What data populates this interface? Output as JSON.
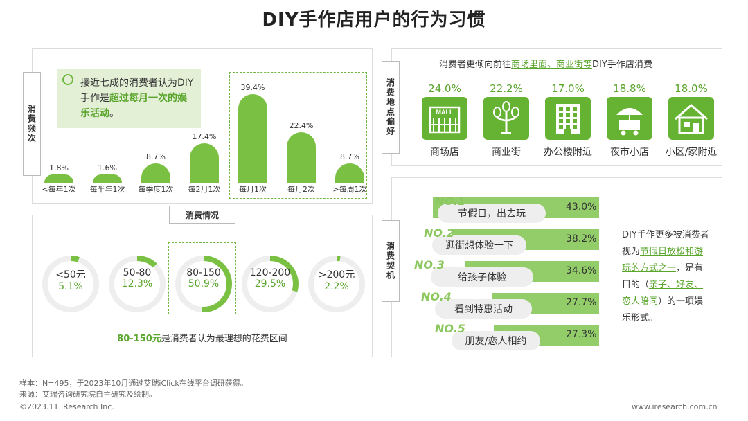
{
  "title": "DIY手作店用户的行为习惯",
  "freq": {
    "label": "消费频次",
    "callout": {
      "a": "接近七成",
      "b": "的消费者认为DIY手作是",
      "c": "超过每月一次的娱乐活动",
      "d": "。"
    }
  },
  "spending": {
    "label": "消费情况",
    "note_bold": "80-150元",
    "note_rest": "是消费者认为最理想的花费区间"
  },
  "location": {
    "label": "消费地点偏好",
    "head_pre": "消费者更倾向前往",
    "head_link": "商场里面、商业街等",
    "head_post": "DIY手作店消费"
  },
  "motive": {
    "label": "消费契机",
    "side_1": "DIY手作更多被消费者视为",
    "side_2": "节假日放松和游玩的方式之一",
    "side_3": "，是有目的（",
    "side_4": "亲子、好友、恋人陪同",
    "side_5": "）的一项娱乐形式。"
  },
  "footer": {
    "sample": "样本：N=495，于2023年10月通过艾瑞iClick在线平台调研获得。",
    "source": "来源：艾瑞咨询研究院自主研究及绘制。",
    "copyright": "©2023.11 iResearch Inc.",
    "site": "www.iresearch.com.cn"
  },
  "colors": {
    "accent": "#7ac143",
    "dark_accent": "#5aa52c",
    "icon_bg": "#66b233",
    "light_bar": "#92cd6a",
    "track": "#eeeeee"
  },
  "chart_data": [
    {
      "type": "bar",
      "name": "消费频次",
      "categories": [
        "<每年1次",
        "每半年1次",
        "每季度1次",
        "每2月1次",
        "每月1次",
        "每月2次",
        ">每周1次"
      ],
      "values": [
        1.8,
        1.6,
        8.7,
        17.4,
        39.4,
        22.4,
        8.7
      ],
      "labels": [
        "1.8%",
        "1.6%",
        "8.7%",
        "17.4%",
        "39.4%",
        "22.4%",
        "8.7%"
      ],
      "unit": "%",
      "highlighted": [
        "每月1次",
        "每月2次",
        ">每周1次"
      ]
    },
    {
      "type": "pie",
      "name": "消费情况",
      "categories": [
        "<50元",
        "50-80",
        "80-150",
        "120-200",
        ">200元"
      ],
      "values": [
        5.1,
        12.3,
        50.9,
        29.5,
        2.2
      ],
      "labels": [
        "5.1%",
        "12.3%",
        "50.9%",
        "29.5%",
        "2.2%"
      ],
      "highlighted": "80-150"
    },
    {
      "type": "table",
      "name": "消费地点偏好",
      "categories": [
        "商场店",
        "商业街",
        "办公楼附近",
        "夜市小店",
        "小区/家附近"
      ],
      "values": [
        24.0,
        22.2,
        17.0,
        18.8,
        18.0
      ],
      "labels": [
        "24.0%",
        "22.2%",
        "17.0%",
        "18.8%",
        "18.0%"
      ],
      "icons": [
        "mall-icon",
        "street-lamp-icon",
        "office-building-icon",
        "night-market-stall-icon",
        "house-icon"
      ],
      "mall_text": "MALL"
    },
    {
      "type": "bar",
      "name": "消费契机",
      "ranks": [
        "NO.1",
        "NO.2",
        "NO.3",
        "NO.4",
        "NO.5"
      ],
      "categories": [
        "节假日，出去玩",
        "逛街想体验一下",
        "给孩子体验",
        "看到特惠活动",
        "朋友/恋人相约"
      ],
      "values": [
        43.0,
        38.2,
        34.6,
        27.7,
        27.3
      ],
      "labels": [
        "43.0%",
        "38.2%",
        "34.6%",
        "27.7%",
        "27.3%"
      ]
    }
  ]
}
